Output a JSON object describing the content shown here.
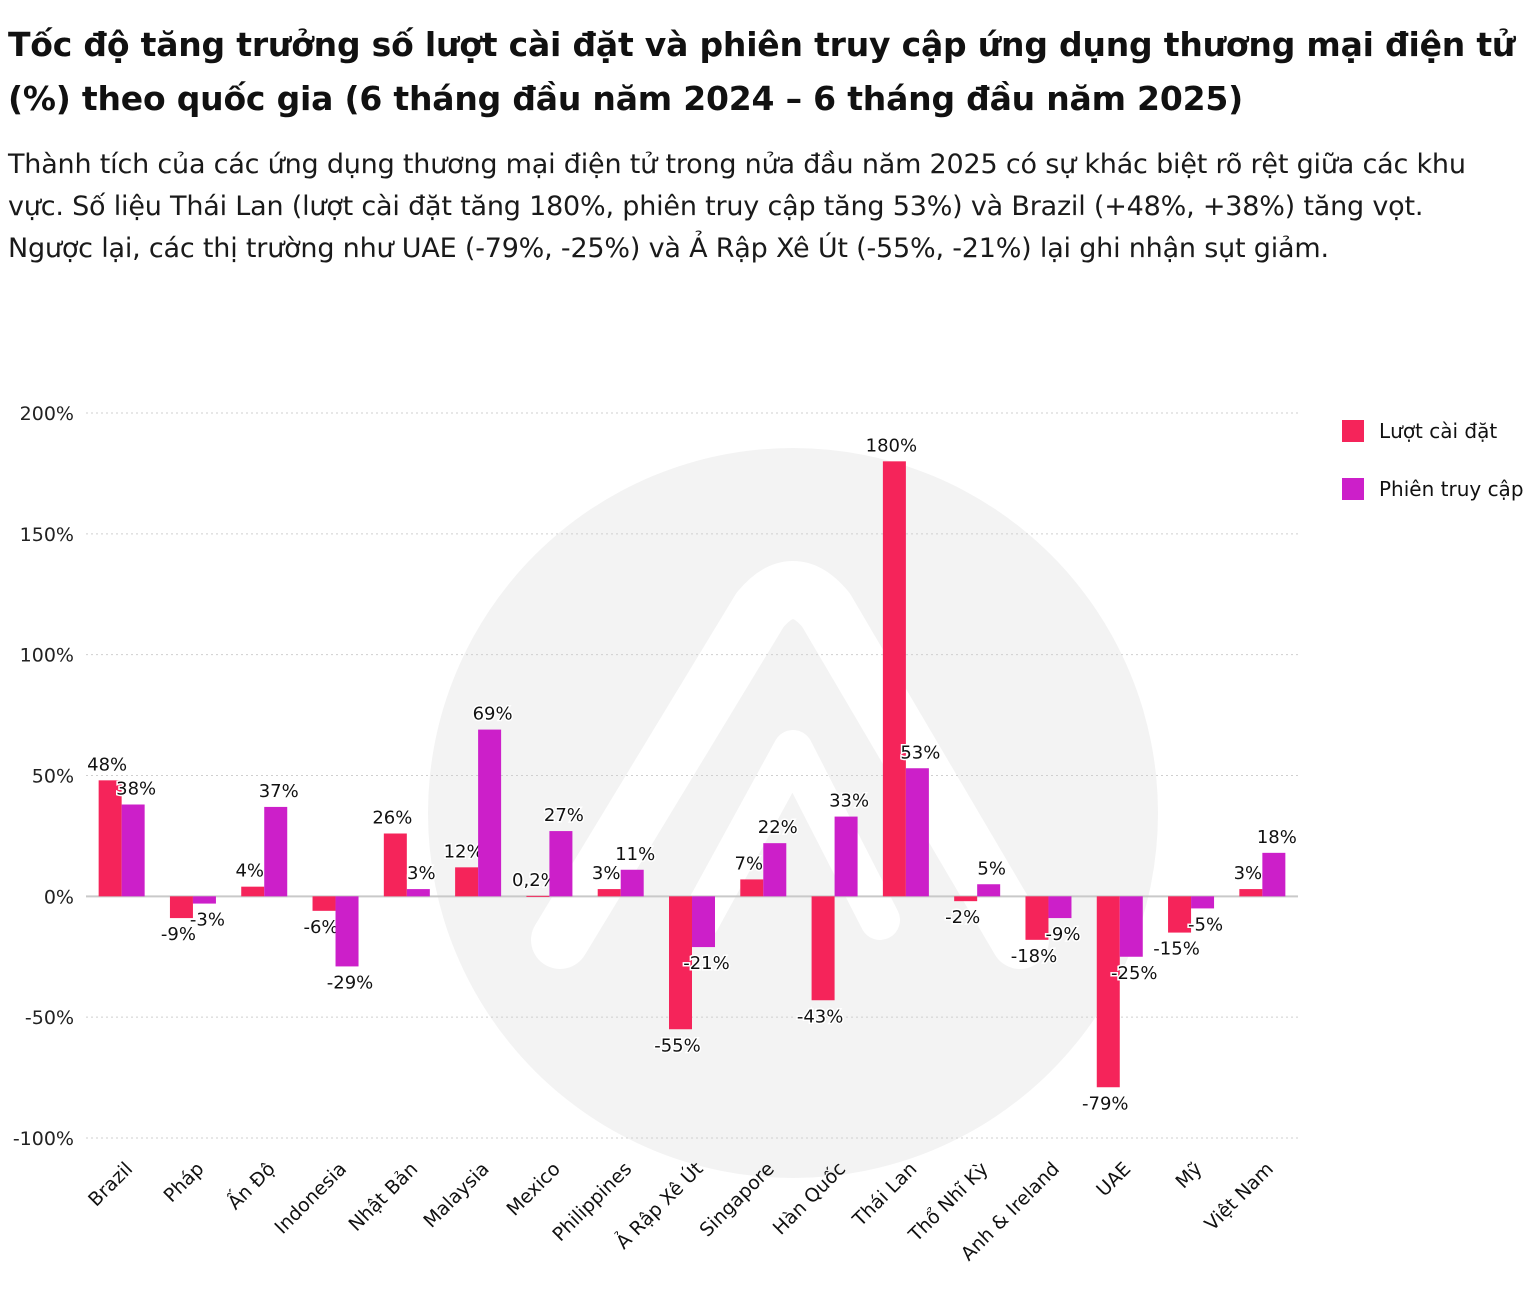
{
  "title": "Tốc độ tăng trưởng số lượt cài đặt và phiên truy cập ứng dụng thương mại điện tử (%) theo quốc gia (6 tháng đầu năm 2024 – 6 tháng đầu năm 2025)",
  "subtitle": "Thành tích của các ứng dụng thương mại điện tử trong nửa đầu năm 2025 có sự khác biệt rõ rệt giữa các khu vực. Số liệu Thái Lan (lượt cài đặt tăng 180%, phiên truy cập tăng 53%) và Brazil (+48%, +38%) tăng vọt. Ngược lại, các thị trường như UAE (-79%, -25%) và Ả Rập Xê Út (-55%, -21%) lại ghi nhận sụt giảm.",
  "colors": {
    "installs": "#f5245a",
    "sessions": "#cc1fc9",
    "grid": "#cfcfcf",
    "watermark": "#f3f3f3"
  },
  "legend": {
    "installs": "Lượt cài đặt",
    "sessions": "Phiên truy cập"
  },
  "chart_data": {
    "type": "bar",
    "title": "Tốc độ tăng trưởng số lượt cài đặt và phiên truy cập ứng dụng thương mại điện tử (%) theo quốc gia (6 tháng đầu năm 2024 – 6 tháng đầu năm 2025)",
    "xlabel": "",
    "ylabel": "",
    "ylim": [
      -100,
      200
    ],
    "yticks": [
      200,
      150,
      100,
      50,
      0,
      -50,
      -100
    ],
    "ytick_labels": [
      "200%",
      "150%",
      "100%",
      "50%",
      "0%",
      "-50%",
      "-100%"
    ],
    "grid": true,
    "legend_position": "top-right",
    "categories": [
      "Brazil",
      "Pháp",
      "Ấn Độ",
      "Indonesia",
      "Nhật Bản",
      "Malaysia",
      "Mexico",
      "Philippines",
      "Ả Rập Xê Út",
      "Singapore",
      "Hàn Quốc",
      "Thái Lan",
      "Thổ Nhĩ Kỳ",
      "Anh & Ireland",
      "UAE",
      "Mỹ",
      "Việt Nam"
    ],
    "series": [
      {
        "name": "Lượt cài đặt",
        "values": [
          48,
          -9,
          4,
          -6,
          26,
          12,
          0.2,
          3,
          -55,
          7,
          -43,
          180,
          -2,
          -18,
          -79,
          -15,
          3
        ],
        "labels": [
          "48%",
          "-9%",
          "4%",
          "-6%",
          "26%",
          "12%",
          "0,2%",
          "3%",
          "-55%",
          "7%",
          "-43%",
          "180%",
          "-2%",
          "-18%",
          "-79%",
          "-15%",
          "3%"
        ]
      },
      {
        "name": "Phiên truy cập",
        "values": [
          38,
          -3,
          37,
          -29,
          3,
          69,
          27,
          11,
          -21,
          22,
          33,
          53,
          5,
          -9,
          -25,
          -5,
          18
        ],
        "labels": [
          "38%",
          "-3%",
          "37%",
          "-29%",
          "3%",
          "69%",
          "27%",
          "11%",
          "-21%",
          "22%",
          "33%",
          "53%",
          "5%",
          "-9%",
          "-25%",
          "-5%",
          "18%"
        ]
      }
    ]
  }
}
